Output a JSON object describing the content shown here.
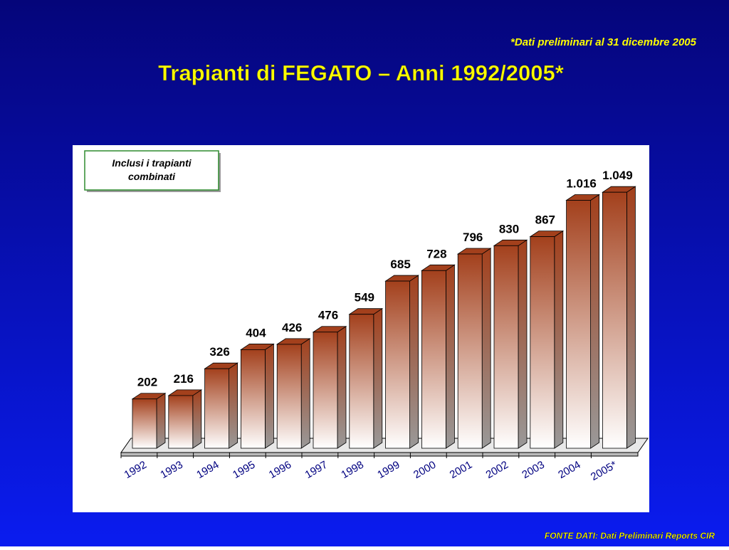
{
  "chart_data": {
    "type": "bar3d",
    "title": "Trapianti di FEGATO – Anni 1992/2005*",
    "subtitle": "*Dati preliminari al 31 dicembre 2005",
    "annotation": [
      "Inclusi i trapianti",
      "combinati"
    ],
    "source": "FONTE DATI: Dati Preliminari Reports CIR",
    "categories": [
      "1992",
      "1993",
      "1994",
      "1995",
      "1996",
      "1997",
      "1998",
      "1999",
      "2000",
      "2001",
      "2002",
      "2003",
      "2004",
      "2005*"
    ],
    "values": [
      202,
      216,
      326,
      404,
      426,
      476,
      549,
      685,
      728,
      796,
      830,
      867,
      1016,
      1049
    ],
    "value_labels": [
      "202",
      "216",
      "326",
      "404",
      "426",
      "476",
      "549",
      "685",
      "728",
      "796",
      "830",
      "867",
      "1.016",
      "1.049"
    ],
    "color": "#a3401c"
  }
}
